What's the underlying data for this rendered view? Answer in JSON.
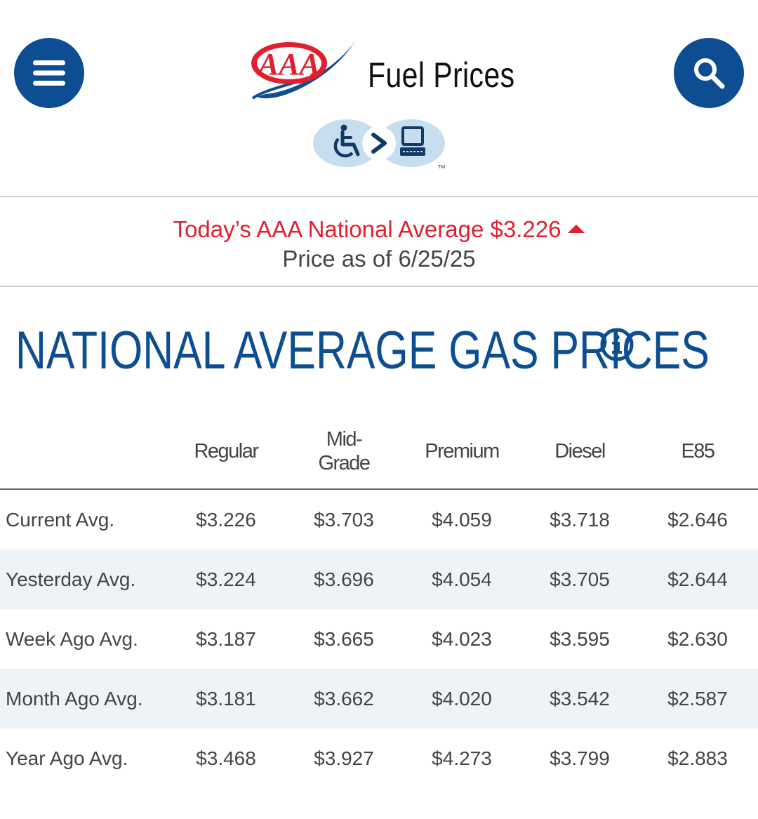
{
  "header": {
    "title": "Fuel Prices",
    "logo_text": "AAA",
    "menu_icon": "hamburger-menu-icon",
    "search_icon": "search-icon",
    "accessibility_badge_icon": "wheelchair-to-computer-icon",
    "colors": {
      "brand_blue": "#0d4e92",
      "aaa_red": "#e0202e"
    }
  },
  "banner": {
    "national_average_label": "Today’s AAA National Average $3.226",
    "trend": "up",
    "price_as_of": "Price as of 6/25/25"
  },
  "section": {
    "title": "NATIONAL AVERAGE GAS PRICES",
    "info_icon": "info-icon"
  },
  "table": {
    "columns": [
      "Regular",
      "Mid-\nGrade",
      "Premium",
      "Diesel",
      "E85"
    ],
    "rows": [
      {
        "label": "Current Avg.",
        "values": [
          "$3.226",
          "$3.703",
          "$4.059",
          "$3.718",
          "$2.646"
        ]
      },
      {
        "label": "Yesterday Avg.",
        "values": [
          "$3.224",
          "$3.696",
          "$4.054",
          "$3.705",
          "$2.644"
        ]
      },
      {
        "label": "Week Ago Avg.",
        "values": [
          "$3.187",
          "$3.665",
          "$4.023",
          "$3.595",
          "$2.630"
        ]
      },
      {
        "label": "Month Ago Avg.",
        "values": [
          "$3.181",
          "$3.662",
          "$4.020",
          "$3.542",
          "$2.587"
        ]
      },
      {
        "label": "Year Ago Avg.",
        "values": [
          "$3.468",
          "$3.927",
          "$4.273",
          "$3.799",
          "$2.883"
        ]
      }
    ]
  }
}
